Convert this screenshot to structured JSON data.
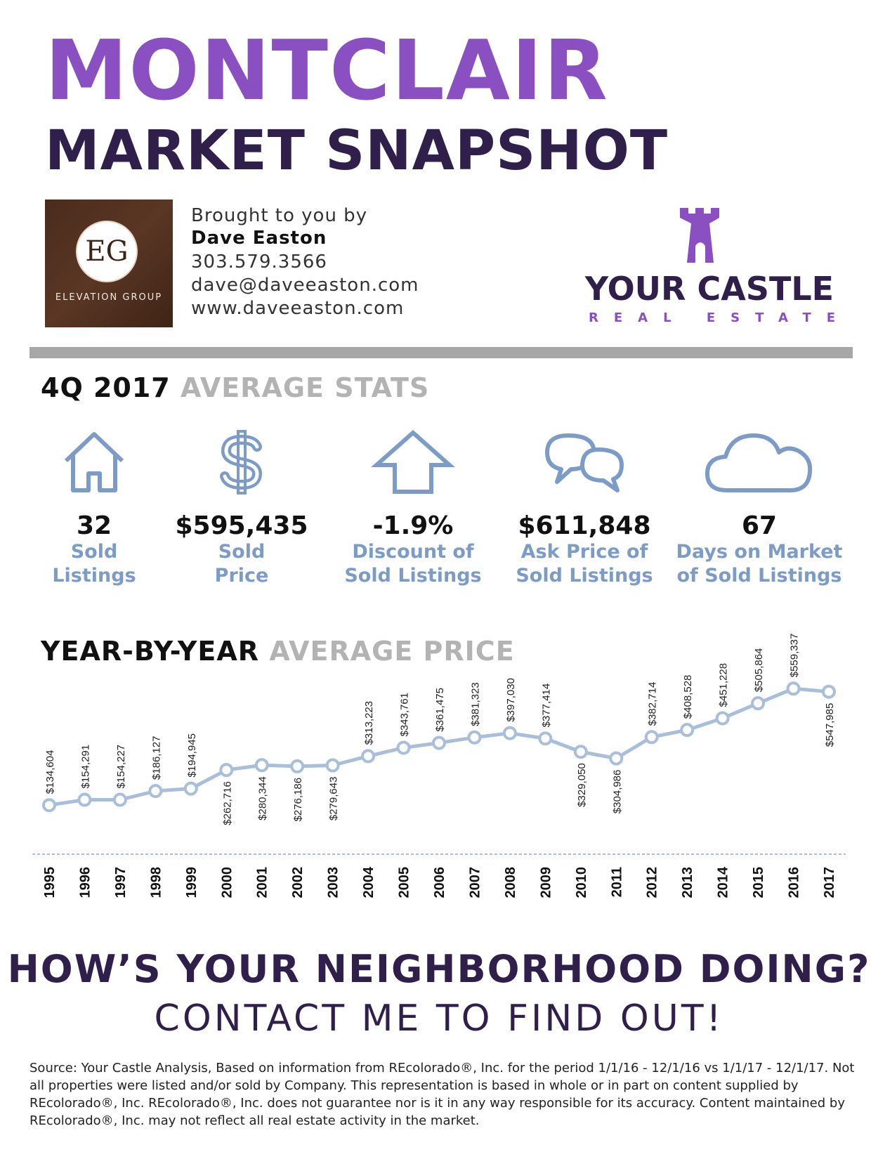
{
  "header": {
    "title": "MONTCLAIR",
    "subtitle": "MARKET SNAPSHOT"
  },
  "agent": {
    "logo_monogram": "EG",
    "logo_name": "ELEVATION GROUP",
    "intro": "Brought to you by",
    "name": "Dave Easton",
    "phone": "303.579.3566",
    "email": "dave@daveeaston.com",
    "website": "www.daveeaston.com"
  },
  "brand": {
    "name": "YOUR CASTLE",
    "sub": "REAL ESTATE",
    "icon": "castle-tower-icon",
    "color_primary": "#8a4fc0",
    "color_dark": "#2f1f4a"
  },
  "stats_section": {
    "title_dark": "4Q 2017",
    "title_grey": "AVERAGE STATS"
  },
  "stats": [
    {
      "icon": "house-icon",
      "value": "32",
      "label": "Sold\nListings"
    },
    {
      "icon": "dollar-icon",
      "value": "$595,435",
      "label": "Sold\nPrice"
    },
    {
      "icon": "arrow-up-icon",
      "value": "-1.9%",
      "label": "Discount of\nSold Listings"
    },
    {
      "icon": "chat-bubbles-icon",
      "value": "$611,848",
      "label": "Ask Price of\nSold Listings"
    },
    {
      "icon": "cloud-icon",
      "value": "67",
      "label": "Days on Market\nof Sold Listings"
    }
  ],
  "chart_section": {
    "title_dark": "YEAR-BY-YEAR",
    "title_grey": "AVERAGE PRICE"
  },
  "chart_data": {
    "type": "line",
    "title": "YEAR-BY-YEAR AVERAGE PRICE",
    "categories": [
      "1995",
      "1996",
      "1997",
      "1998",
      "1999",
      "2000",
      "2001",
      "2002",
      "2003",
      "2004",
      "2005",
      "2006",
      "2007",
      "2008",
      "2009",
      "2010",
      "2011",
      "2012",
      "2013",
      "2014",
      "2015",
      "2016",
      "2017"
    ],
    "values": [
      134604,
      154291,
      154227,
      186127,
      194945,
      262716,
      280344,
      276186,
      279643,
      313223,
      343761,
      361475,
      381323,
      397030,
      377414,
      329050,
      304986,
      382714,
      408528,
      451228,
      505864,
      559337,
      547985
    ],
    "labels": [
      "$134,604",
      "$154,291",
      "$154,227",
      "$186,127",
      "$194,945",
      "$262,716",
      "$280,344",
      "$276,186",
      "$279,643",
      "$313,223",
      "$343,761",
      "$361,475",
      "$381,323",
      "$397,030",
      "$377,414",
      "$329,050",
      "$304,986",
      "$382,714",
      "$408,528",
      "$451,228",
      "$505,864",
      "$559,337",
      "$547,985"
    ],
    "label_position": [
      "above",
      "above",
      "above",
      "above",
      "above",
      "below",
      "below",
      "below",
      "below",
      "above",
      "above",
      "above",
      "above",
      "above",
      "above",
      "below",
      "below",
      "above",
      "above",
      "above",
      "above",
      "above",
      "below"
    ],
    "line_color": "#a9bedb",
    "marker_stroke": "#a9bedb",
    "xlabel": "",
    "ylabel": "",
    "grid": false
  },
  "cta": {
    "line1": "HOW’S YOUR NEIGHBORHOOD DOING?",
    "line2": "CONTACT ME TO FIND OUT!"
  },
  "source_text": "Source:  Your Castle Analysis, Based on information from REcolorado®, Inc. for the period 1/1/16 - 12/1/16 vs 1/1/17 - 12/1/17.  Not all properties were listed and/or sold by Company. This representation is based in whole or in part on content supplied by REcolorado®, Inc. REcolorado®, Inc. does not guarantee nor is  it in any way responsible for its accuracy. Content maintained by REcolorado®, Inc. may not reflect all real estate activity in the market."
}
